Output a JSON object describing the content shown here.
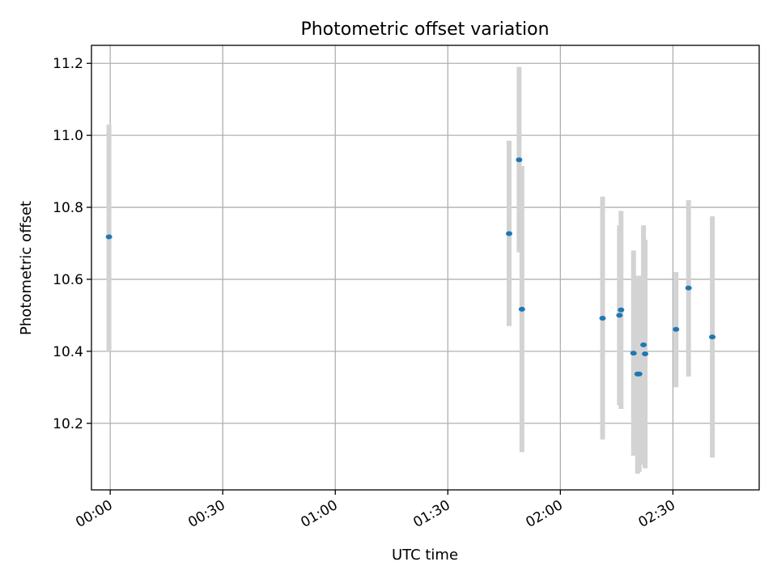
{
  "chart_data": {
    "type": "scatter",
    "title": "Photometric offset variation",
    "xlabel": "UTC time",
    "ylabel": "Photometric offset",
    "x_unit": "UTC time (HH:MM)",
    "xlim": [
      "23:55",
      "02:53"
    ],
    "ylim": [
      10.015,
      11.25
    ],
    "x_ticks": [
      "00:00",
      "00:30",
      "01:00",
      "01:30",
      "02:00",
      "02:30"
    ],
    "y_ticks": [
      "10.2",
      "10.4",
      "10.6",
      "10.8",
      "11.0",
      "11.2"
    ],
    "grid": true,
    "point_color": "#1f77b4",
    "errorbar_color": "#d3d3d3",
    "points": [
      {
        "x": "23:59:40",
        "y": 10.718,
        "y_low": 10.4,
        "y_high": 11.03
      },
      {
        "x": "01:46:20",
        "y": 10.727,
        "y_low": 10.47,
        "y_high": 10.985
      },
      {
        "x": "01:49:00",
        "y": 10.932,
        "y_low": 10.675,
        "y_high": 11.19
      },
      {
        "x": "01:49:45",
        "y": 10.517,
        "y_low": 10.12,
        "y_high": 10.915
      },
      {
        "x": "02:11:15",
        "y": 10.492,
        "y_low": 10.155,
        "y_high": 10.83
      },
      {
        "x": "02:15:45",
        "y": 10.5,
        "y_low": 10.25,
        "y_high": 10.75
      },
      {
        "x": "02:16:10",
        "y": 10.515,
        "y_low": 10.24,
        "y_high": 10.79
      },
      {
        "x": "02:19:30",
        "y": 10.395,
        "y_low": 10.11,
        "y_high": 10.68
      },
      {
        "x": "02:20:35",
        "y": 10.337,
        "y_low": 10.06,
        "y_high": 10.61
      },
      {
        "x": "02:21:00",
        "y": 10.337,
        "y_low": 10.065,
        "y_high": 10.61
      },
      {
        "x": "02:22:10",
        "y": 10.418,
        "y_low": 10.085,
        "y_high": 10.75
      },
      {
        "x": "02:22:35",
        "y": 10.393,
        "y_low": 10.075,
        "y_high": 10.71
      },
      {
        "x": "02:30:50",
        "y": 10.461,
        "y_low": 10.3,
        "y_high": 10.62
      },
      {
        "x": "02:34:10",
        "y": 10.576,
        "y_low": 10.33,
        "y_high": 10.82
      },
      {
        "x": "02:40:30",
        "y": 10.44,
        "y_low": 10.105,
        "y_high": 10.775
      }
    ]
  }
}
